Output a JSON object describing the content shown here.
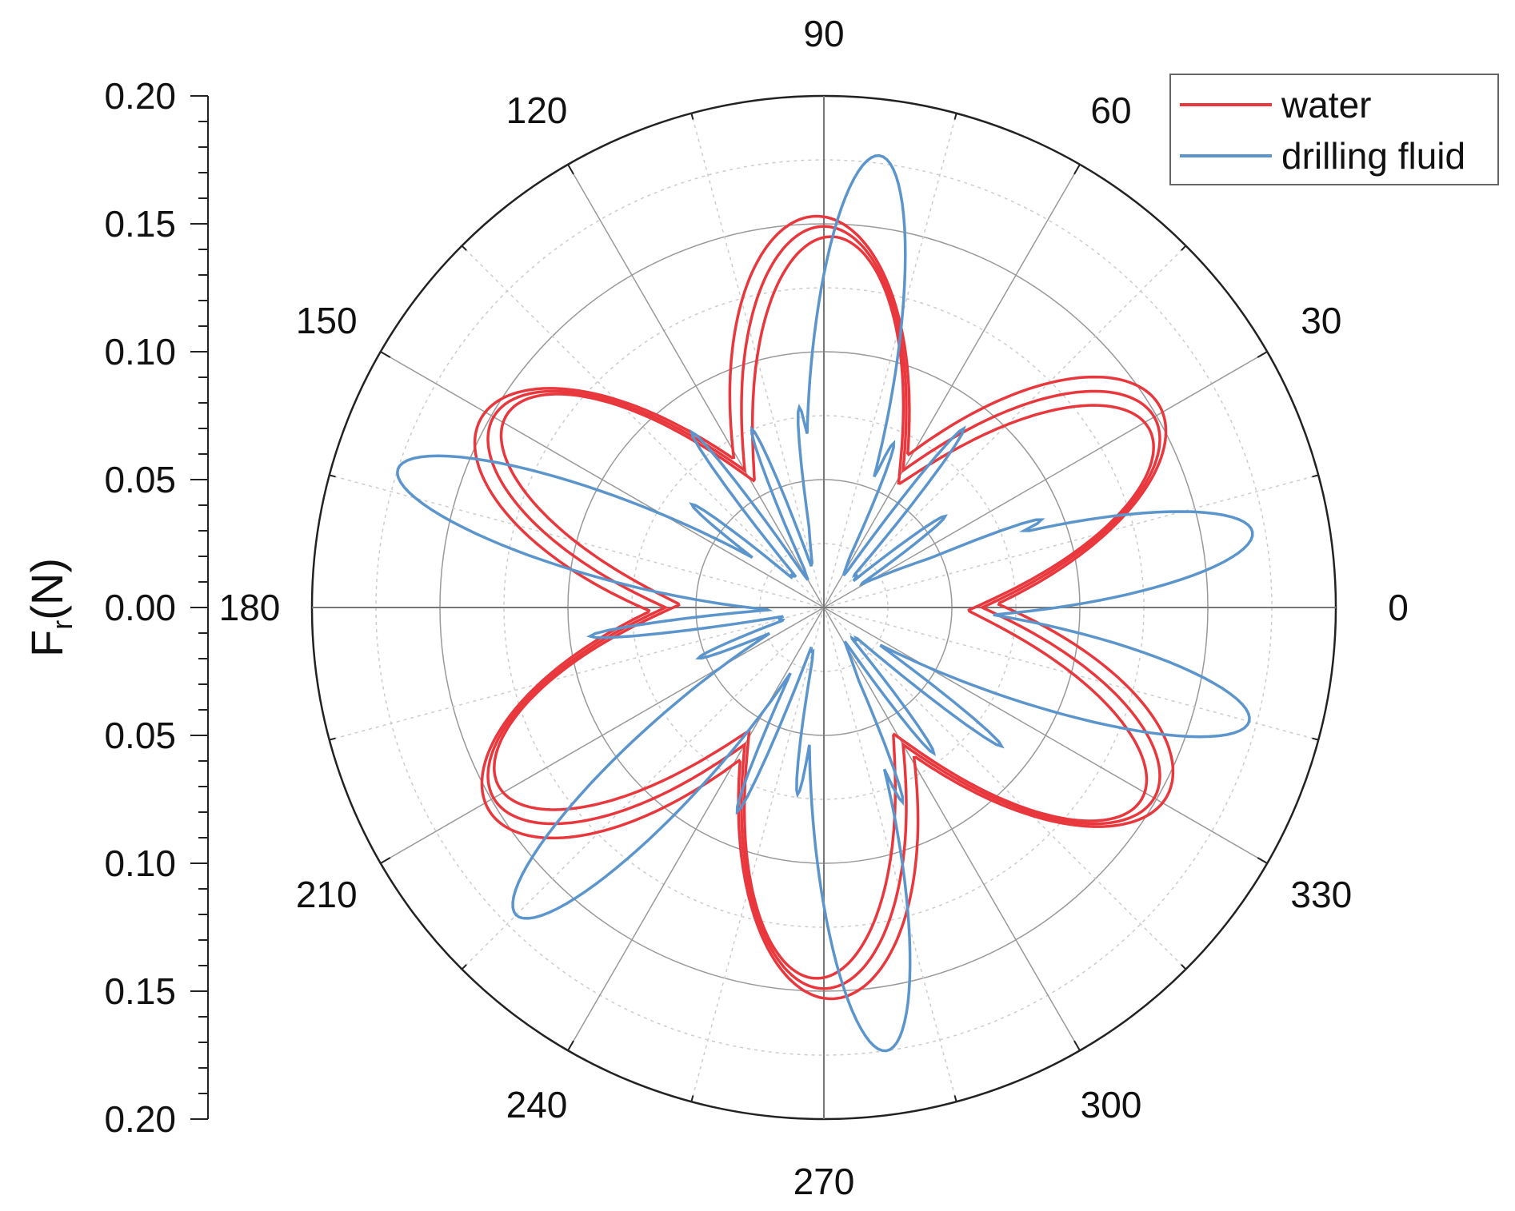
{
  "colors": {
    "water": "#e8383d",
    "drilling_fluid": "#5b95cc"
  },
  "chart_data": {
    "type": "polar-line",
    "title": "",
    "ylabel": "F",
    "ylabel_subscript": "r",
    "ylabel_unit": "(N)",
    "rlim": [
      0,
      0.2
    ],
    "r_ticks": [
      0.05,
      0.1,
      0.15,
      0.2
    ],
    "y_tick_labels": [
      "0.20",
      "0.15",
      "0.10",
      "0.05",
      "0.00",
      "0.05",
      "0.10",
      "0.15",
      "0.20"
    ],
    "angle_ticks": [
      0,
      30,
      60,
      90,
      120,
      150,
      180,
      210,
      240,
      270,
      300,
      330
    ],
    "angle_tick_labels": [
      "0",
      "30",
      "60",
      "90",
      "120",
      "150",
      "180",
      "210",
      "240",
      "270",
      "300",
      "330"
    ],
    "grid": true,
    "legend_position": "top-right",
    "series": [
      {
        "name": "water",
        "lobes": 6,
        "peak_angles_deg": [
          30,
          90,
          150,
          210,
          270,
          330
        ],
        "peak_r": 0.145,
        "valley_r": 0.04,
        "traces": 3
      },
      {
        "name": "drilling fluid",
        "lobes": 6,
        "peak_angles_deg": [
          10,
          83,
          162,
          225,
          278,
          345
        ],
        "peak_r": [
          0.17,
          0.178,
          0.175,
          0.17,
          0.175,
          0.172
        ],
        "secondary_lobes_r": 0.08,
        "traces": 1
      }
    ]
  }
}
